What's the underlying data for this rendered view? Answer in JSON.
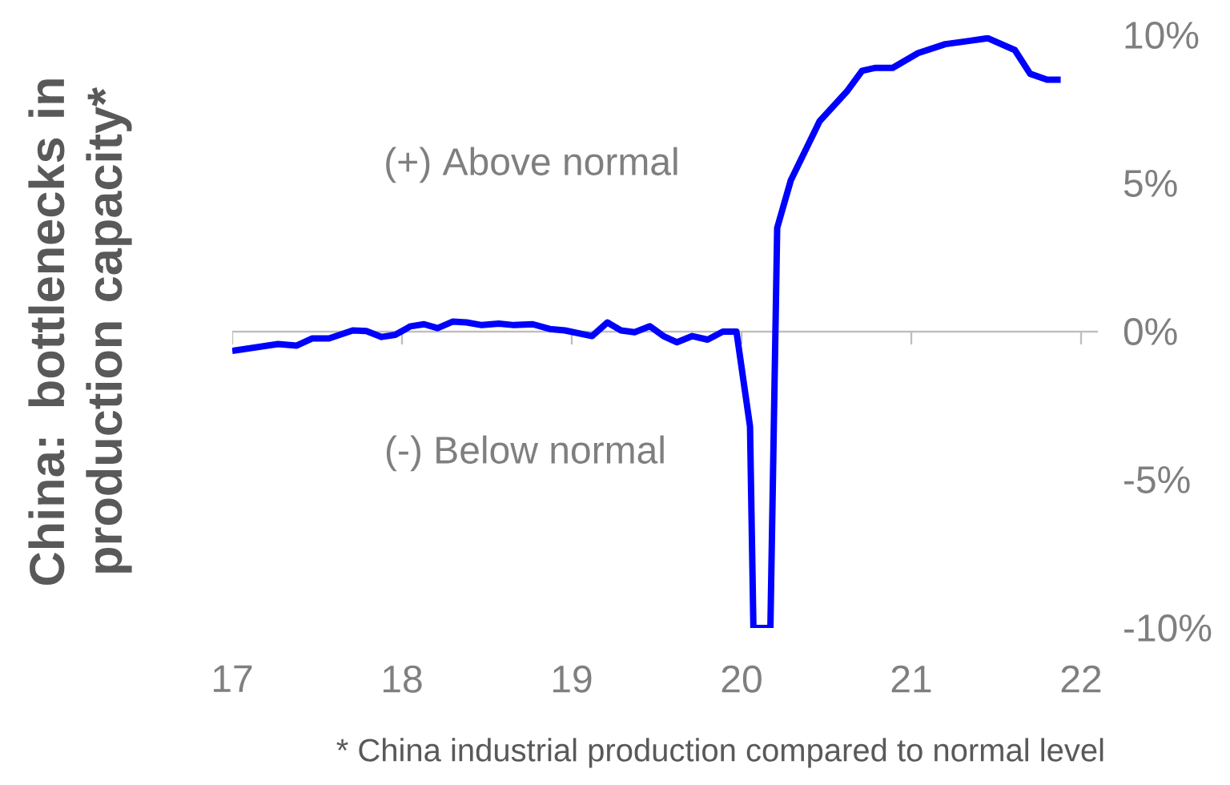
{
  "chart_data": {
    "type": "line",
    "ylabel": "China: bottlenecks in production capacity*",
    "x": [
      17.0,
      17.27,
      17.38,
      17.47,
      17.57,
      17.71,
      17.79,
      17.88,
      17.96,
      18.05,
      18.13,
      18.21,
      18.3,
      18.38,
      18.47,
      18.57,
      18.66,
      18.77,
      18.87,
      18.96,
      19.12,
      19.21,
      19.29,
      19.37,
      19.46,
      19.54,
      19.62,
      19.71,
      19.8,
      19.89,
      19.97,
      20.05,
      20.07,
      20.17,
      20.21,
      20.29,
      20.46,
      20.62,
      20.71,
      20.79,
      20.89,
      21.04,
      21.2,
      21.33,
      21.45,
      21.61,
      21.7,
      21.8,
      21.88
    ],
    "series": [
      {
        "color": "#0000ff",
        "values": [
          -0.65,
          -0.42,
          -0.47,
          -0.23,
          -0.23,
          0.04,
          0.02,
          -0.18,
          -0.11,
          0.18,
          0.25,
          0.12,
          0.34,
          0.31,
          0.22,
          0.27,
          0.22,
          0.25,
          0.09,
          0.04,
          -0.15,
          0.31,
          0.04,
          -0.02,
          0.18,
          -0.15,
          -0.36,
          -0.15,
          -0.27,
          0,
          0,
          -3.2,
          -10,
          -10,
          3.5,
          5.1,
          7.1,
          8.1,
          8.8,
          8.9,
          8.9,
          9.4,
          9.7,
          9.8,
          9.9,
          9.5,
          8.7,
          8.5,
          8.5
        ]
      }
    ],
    "xlim": [
      17,
      22.1
    ],
    "ylim": [
      -10,
      10
    ],
    "xticks": [
      17,
      18,
      19,
      20,
      21,
      22
    ],
    "yticks": [
      {
        "value": 10,
        "label": "10%"
      },
      {
        "value": 5,
        "label": "5%"
      },
      {
        "value": 0,
        "label": "0%"
      },
      {
        "value": -5,
        "label": "-5%"
      },
      {
        "value": -10,
        "label": "-10%"
      }
    ],
    "ref_lines": [
      {
        "axis": "y",
        "value": 0,
        "color": "#bfbfbf"
      }
    ],
    "annotations": [
      "(+) Above normal",
      "(-) Below normal",
      "* China industrial production compared to normal level"
    ],
    "marker": "none",
    "line_style": "solid"
  }
}
